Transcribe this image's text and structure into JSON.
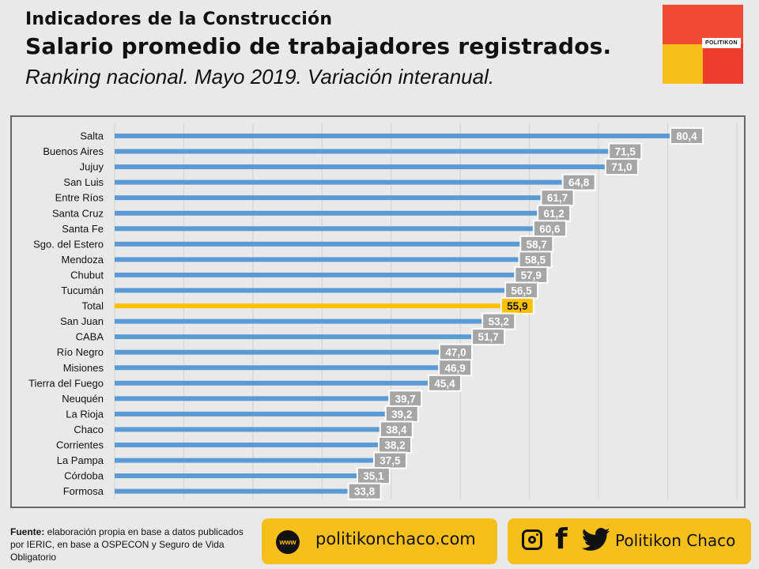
{
  "header": {
    "line1": "Indicadores de la Construcción",
    "line2": "Salario promedio de trabajadores registrados.",
    "line3": "Ranking nacional. Mayo 2019. Variación interanual."
  },
  "logo": {
    "label": "POLITIKON"
  },
  "source": {
    "label": "Fuente:",
    "text": " elaboración propia en base a datos publicados por IERIC, en base a OSPECON y Seguro de Vida Obligatorio"
  },
  "footer": {
    "www_icon": "www",
    "url": "politikonchaco.com",
    "facebook_glyph": "f",
    "brand": "Politikon Chaco"
  },
  "colors": {
    "bar": "#5b9bd5",
    "highlight": "#ffc000",
    "label_bg": "#a6a6a6",
    "grid": "#d2d2d2"
  },
  "chart_data": {
    "type": "bar",
    "orientation": "horizontal",
    "title": "Salario promedio de trabajadores registrados.",
    "subtitle": "Ranking nacional. Mayo 2019. Variación interanual.",
    "xlim": [
      0,
      90
    ],
    "grid": true,
    "highlight": "Total",
    "categories": [
      "Salta",
      "Buenos Aires",
      "Jujuy",
      "San Luis",
      "Entre Ríos",
      "Santa Cruz",
      "Santa Fe",
      "Sgo. del Estero",
      "Mendoza",
      "Chubut",
      "Tucumán",
      "Total",
      "San Juan",
      "CABA",
      "Río Negro",
      "Misiones",
      "Tierra del Fuego",
      "Neuquén",
      "La Rioja",
      "Chaco",
      "Corrientes",
      "La Pampa",
      "Córdoba",
      "Formosa"
    ],
    "values": [
      80.4,
      71.5,
      71.0,
      64.8,
      61.7,
      61.2,
      60.6,
      58.7,
      58.5,
      57.9,
      56.5,
      55.9,
      53.2,
      51.7,
      47.0,
      46.9,
      45.4,
      39.7,
      39.2,
      38.4,
      38.2,
      37.5,
      35.1,
      33.8
    ],
    "labels": [
      "80,4",
      "71,5",
      "71,0",
      "64,8",
      "61,7",
      "61,2",
      "60,6",
      "58,7",
      "58,5",
      "57,9",
      "56,5",
      "55,9",
      "53,2",
      "51,7",
      "47,0",
      "46,9",
      "45,4",
      "39,7",
      "39,2",
      "38,4",
      "38,2",
      "37,5",
      "35,1",
      "33,8"
    ]
  }
}
